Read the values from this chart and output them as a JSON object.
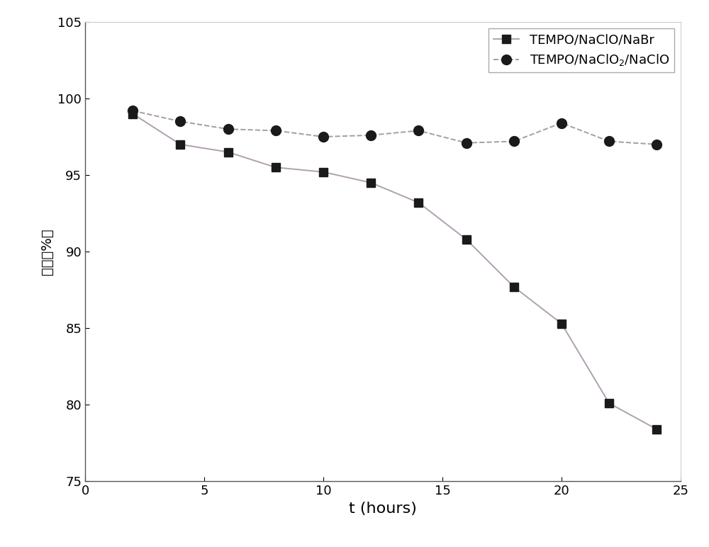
{
  "series1_label": "TEMPO/NaClO/NaBr",
  "series2_label": "TEMPO/NaClO$_2$/NaClO",
  "series1_x": [
    2,
    4,
    6,
    8,
    10,
    12,
    14,
    16,
    18,
    20,
    22,
    24
  ],
  "series1_y": [
    99.0,
    97.0,
    96.5,
    95.5,
    95.2,
    94.5,
    93.2,
    90.8,
    87.7,
    85.3,
    80.1,
    78.4
  ],
  "series2_x": [
    2,
    4,
    6,
    8,
    10,
    12,
    14,
    16,
    18,
    20,
    22,
    24
  ],
  "series2_y": [
    99.2,
    98.5,
    98.0,
    97.9,
    97.5,
    97.6,
    97.9,
    97.1,
    97.2,
    98.4,
    97.2,
    97.0
  ],
  "series1_line_color": "#b0a0b0",
  "series2_line_color": "#a0a0a0",
  "series1_marker_color": "#1a1a1a",
  "series2_marker_color": "#1a1a1a",
  "series1_linestyle": "solid",
  "series2_linestyle": "dashed",
  "series1_marker": "s",
  "series2_marker": "o",
  "marker_size_s": 8,
  "marker_size_o": 10,
  "linewidth": 1.4,
  "xlabel": "t (hours)",
  "xlim": [
    0,
    25
  ],
  "ylim": [
    75,
    105
  ],
  "xticks": [
    0,
    5,
    10,
    15,
    20,
    25
  ],
  "yticks": [
    75,
    80,
    85,
    90,
    95,
    100,
    105
  ],
  "xlabel_fontsize": 16,
  "ylabel_fontsize": 14,
  "tick_fontsize": 13,
  "legend_fontsize": 13,
  "background_color": "#ffffff"
}
